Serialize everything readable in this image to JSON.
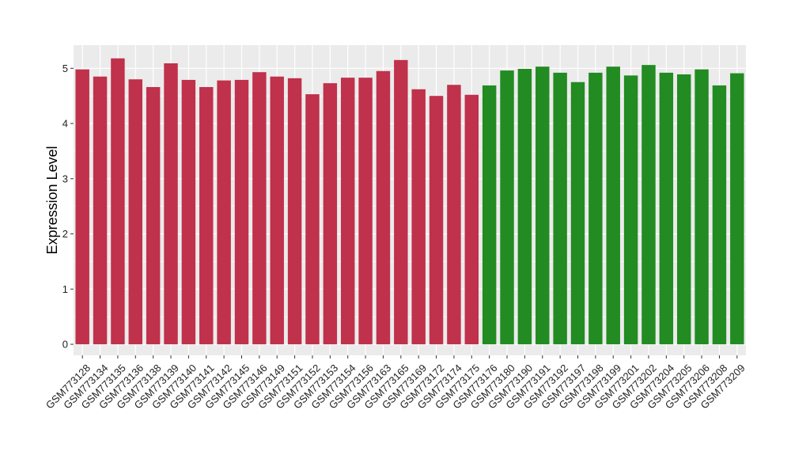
{
  "chart_data": {
    "type": "bar",
    "title": "",
    "xlabel": "",
    "ylabel": "Expression Level",
    "ylim": [
      -0.2,
      5.42
    ],
    "yticks": [
      0,
      1,
      2,
      3,
      4,
      5
    ],
    "grid": true,
    "legend": "none",
    "colors": {
      "group1": "#c0314b",
      "group2": "#228b22",
      "panel": "#ebebeb",
      "grid": "#ffffff"
    },
    "categories": [
      "GSM773128",
      "GSM773134",
      "GSM773135",
      "GSM773136",
      "GSM773138",
      "GSM773139",
      "GSM773140",
      "GSM773141",
      "GSM773142",
      "GSM773145",
      "GSM773146",
      "GSM773149",
      "GSM773151",
      "GSM773152",
      "GSM773153",
      "GSM773154",
      "GSM773156",
      "GSM773163",
      "GSM773165",
      "GSM773169",
      "GSM773172",
      "GSM773174",
      "GSM773175",
      "GSM773176",
      "GSM773180",
      "GSM773190",
      "GSM773191",
      "GSM773192",
      "GSM773197",
      "GSM773198",
      "GSM773199",
      "GSM773201",
      "GSM773202",
      "GSM773204",
      "GSM773205",
      "GSM773206",
      "GSM773208",
      "GSM773209"
    ],
    "values": [
      4.98,
      4.85,
      5.18,
      4.8,
      4.66,
      5.09,
      4.79,
      4.66,
      4.78,
      4.79,
      4.93,
      4.85,
      4.82,
      4.53,
      4.73,
      4.83,
      4.83,
      4.95,
      5.15,
      4.62,
      4.5,
      4.7,
      4.52,
      4.69,
      4.96,
      4.99,
      5.03,
      4.92,
      4.75,
      4.92,
      5.03,
      4.87,
      5.06,
      4.92,
      4.89,
      4.98,
      4.69,
      4.91
    ],
    "groups": [
      1,
      1,
      1,
      1,
      1,
      1,
      1,
      1,
      1,
      1,
      1,
      1,
      1,
      1,
      1,
      1,
      1,
      1,
      1,
      1,
      1,
      1,
      1,
      2,
      2,
      2,
      2,
      2,
      2,
      2,
      2,
      2,
      2,
      2,
      2,
      2,
      2,
      2
    ]
  }
}
